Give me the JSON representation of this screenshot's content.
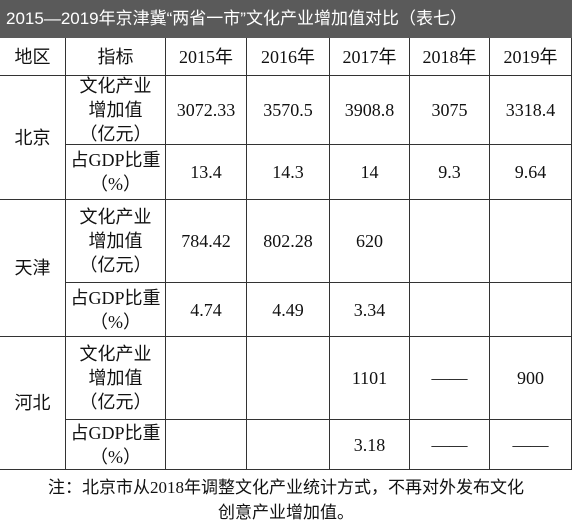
{
  "title": "2015—2019年京津冀“两省一市”文化产业增加值对比（表七）",
  "table": {
    "header": [
      "地区",
      "指标",
      "2015年",
      "2016年",
      "2017年",
      "2018年",
      "2019年"
    ],
    "groups": [
      {
        "region": "北京",
        "rows": [
          {
            "indicator": [
              "文化产业",
              "增加值",
              "（亿元）"
            ],
            "values": [
              "3072.33",
              "3570.5",
              "3908.8",
              "3075",
              "3318.4"
            ]
          },
          {
            "indicator": [
              "占GDP比重",
              "（%）"
            ],
            "values": [
              "13.4",
              "14.3",
              "14",
              "9.3",
              "9.64"
            ]
          }
        ]
      },
      {
        "region": "天津",
        "rows": [
          {
            "indicator": [
              "文化产业",
              "增加值",
              "（亿元）"
            ],
            "values": [
              "784.42",
              "802.28",
              "620",
              null,
              null
            ]
          },
          {
            "indicator": [
              "占GDP比重",
              "（%）"
            ],
            "values": [
              "4.74",
              "4.49",
              "3.34",
              null,
              null
            ]
          }
        ]
      },
      {
        "region": "河北",
        "rows": [
          {
            "indicator": [
              "文化产业",
              "增加值",
              "（亿元）"
            ],
            "values": [
              null,
              null,
              "1101",
              "——",
              "900"
            ]
          },
          {
            "indicator": [
              "占GDP比重",
              "（%）"
            ],
            "values": [
              null,
              null,
              "3.18",
              "——",
              "——"
            ]
          }
        ]
      }
    ]
  },
  "note": [
    "注：北京市从2018年调整文化产业统计方式，不再对外发布文化",
    "创意产业增加值。"
  ]
}
